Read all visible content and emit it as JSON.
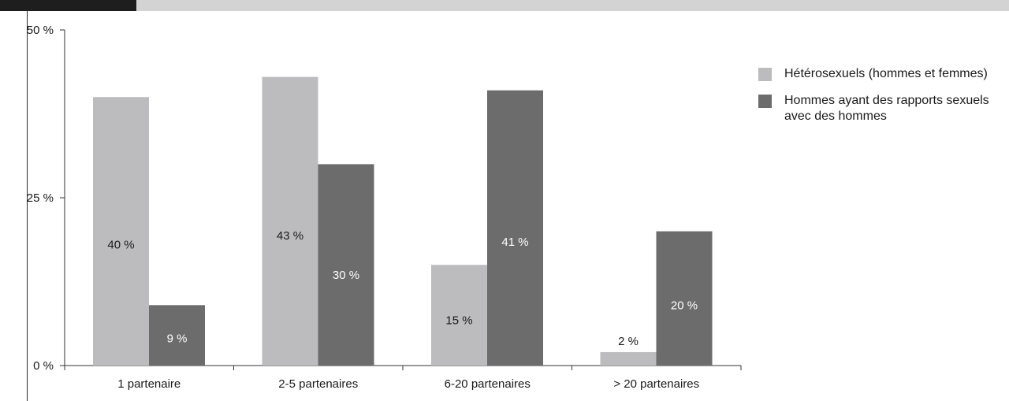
{
  "colors": {
    "series1": "#bcbcbe",
    "series2": "#6c6c6d",
    "axis": "#333333"
  },
  "chart_data": {
    "type": "bar",
    "categories": [
      "1 partenaire",
      "2-5 partenaires",
      "6-20 partenaires",
      "> 20 partenaires"
    ],
    "series": [
      {
        "name": "Hétérosexuels (hommes et femmes)",
        "values": [
          40,
          43,
          15,
          2
        ],
        "labels": [
          "40 %",
          "43 %",
          "15 %",
          "2 %"
        ]
      },
      {
        "name": "Hommes ayant des rapports sexuels avec des hommes",
        "values": [
          9,
          30,
          41,
          20
        ],
        "labels": [
          "9 %",
          "30 %",
          "41 %",
          "20 %"
        ]
      }
    ],
    "ylim": [
      0,
      50
    ],
    "yticks": [
      0,
      25,
      50
    ],
    "ytick_labels": [
      "0 %",
      "25 %",
      "50 %"
    ],
    "grid": false,
    "legend_position": "right"
  },
  "legend": {
    "items": [
      {
        "label": "Hétérosexuels (hommes et femmes)",
        "color": "#bcbcbe"
      },
      {
        "label": "Hommes ayant des rapports sexuels avec des hommes",
        "color": "#6c6c6d"
      }
    ]
  }
}
